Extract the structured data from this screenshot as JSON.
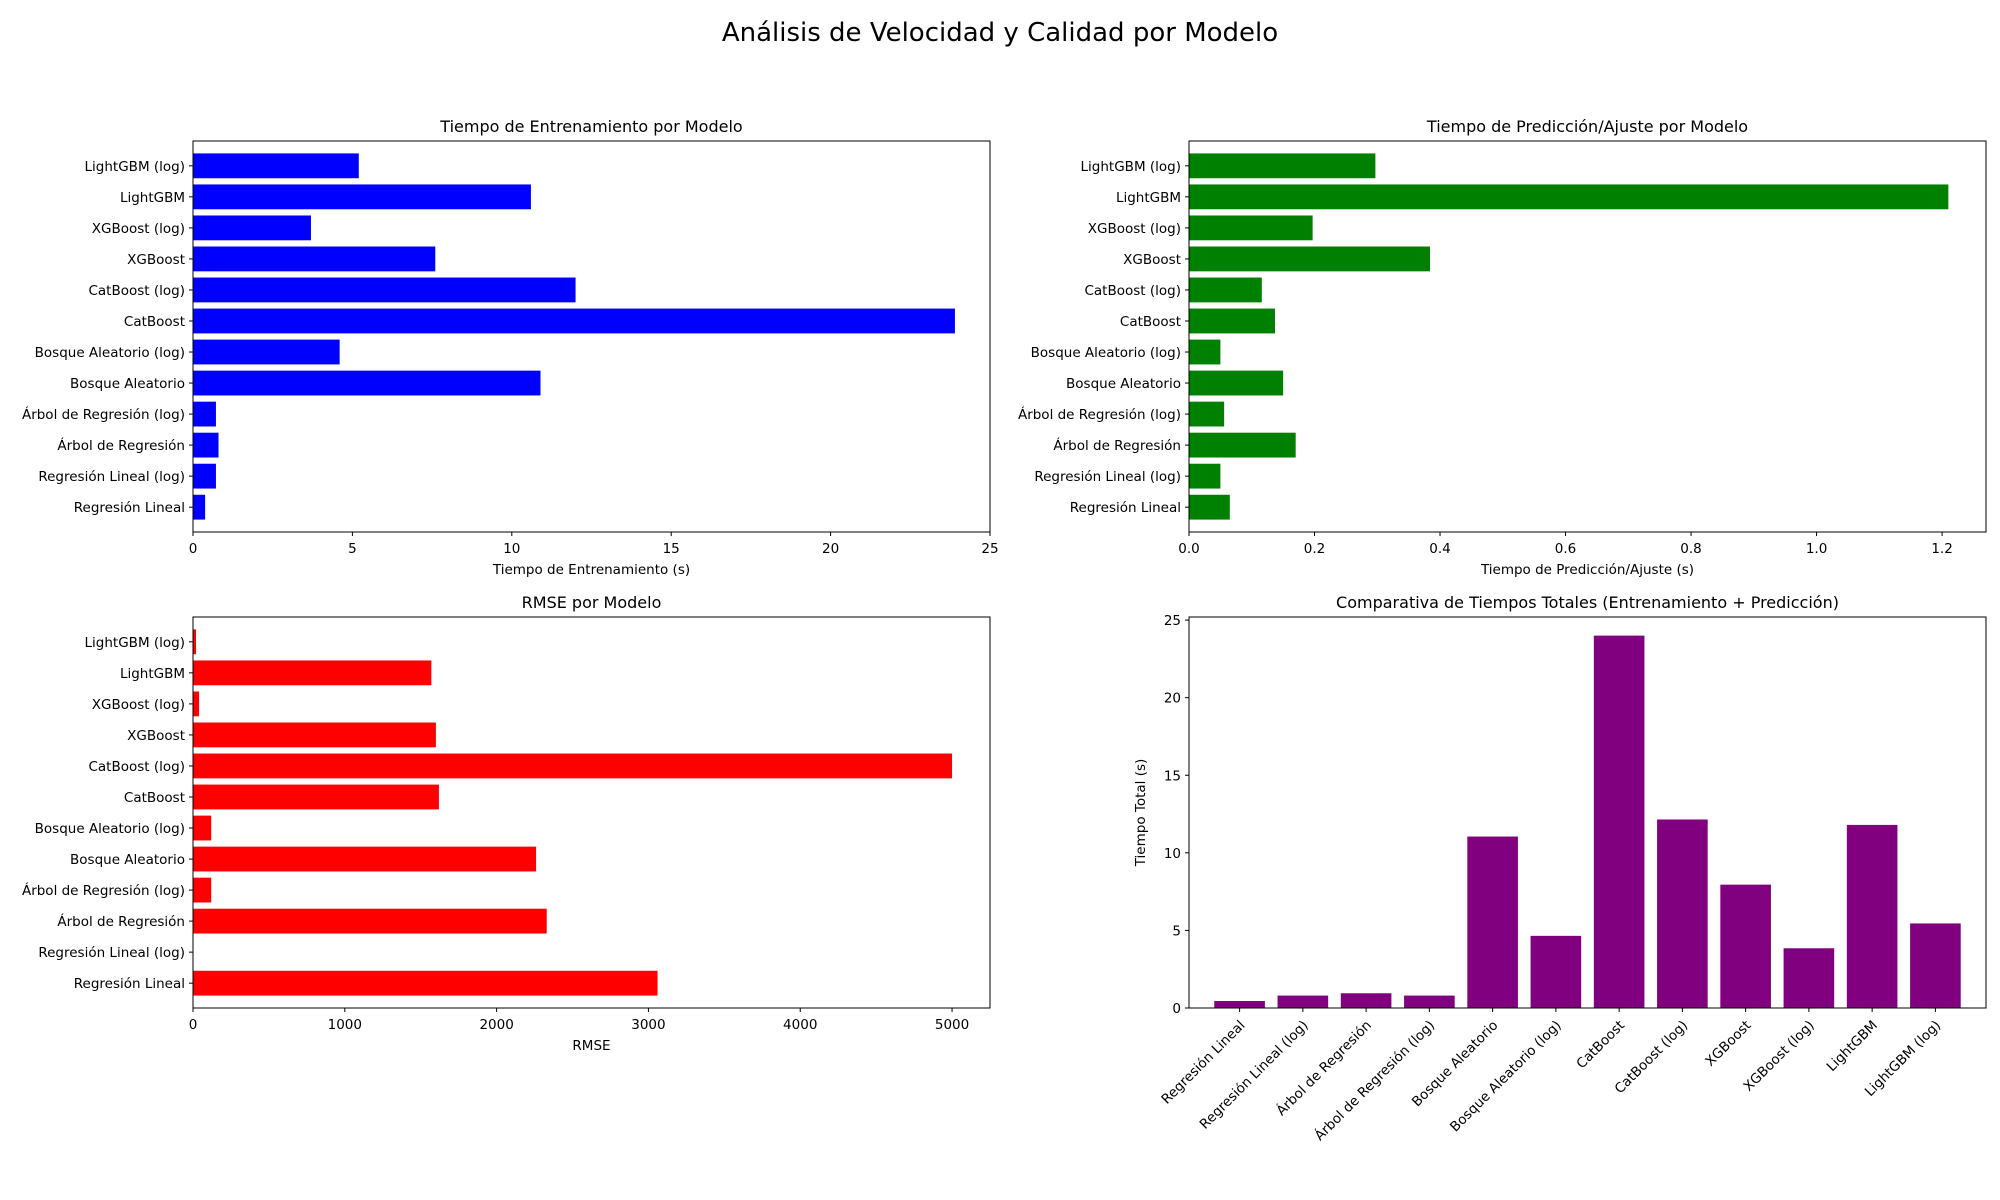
{
  "figure_title": "Análisis de Velocidad y Calidad por Modelo",
  "chart_data": [
    {
      "type": "bar",
      "orientation": "horizontal",
      "title": "Tiempo de Entrenamiento por Modelo",
      "xlabel": "Tiempo de Entrenamiento (s)",
      "ylabel": "",
      "color": "#0000ff",
      "xlim": [
        0,
        25
      ],
      "xticks": [
        0,
        5,
        10,
        15,
        20,
        25
      ],
      "xtick_labels": [
        "0",
        "5",
        "10",
        "15",
        "20",
        "25"
      ],
      "categories": [
        "Regresión Lineal",
        "Regresión Lineal (log)",
        "Árbol de Regresión",
        "Árbol de Regresión (log)",
        "Bosque Aleatorio",
        "Bosque Aleatorio (log)",
        "CatBoost",
        "CatBoost (log)",
        "XGBoost",
        "XGBoost (log)",
        "LightGBM",
        "LightGBM (log)"
      ],
      "values": [
        0.38,
        0.72,
        0.8,
        0.72,
        10.9,
        4.6,
        23.9,
        12.0,
        7.6,
        3.7,
        10.6,
        5.2
      ]
    },
    {
      "type": "bar",
      "orientation": "horizontal",
      "title": "Tiempo de Predicción/Ajuste por Modelo",
      "xlabel": "Tiempo de Predicción/Ajuste (s)",
      "ylabel": "",
      "color": "#008000",
      "xlim": [
        0,
        1.27
      ],
      "xticks": [
        0,
        0.2,
        0.4,
        0.6,
        0.8,
        1.0,
        1.2
      ],
      "xtick_labels": [
        "0.0",
        "0.2",
        "0.4",
        "0.6",
        "0.8",
        "1.0",
        "1.2"
      ],
      "categories": [
        "Regresión Lineal",
        "Regresión Lineal (log)",
        "Árbol de Regresión",
        "Árbol de Regresión (log)",
        "Bosque Aleatorio",
        "Bosque Aleatorio (log)",
        "CatBoost",
        "CatBoost (log)",
        "XGBoost",
        "XGBoost (log)",
        "LightGBM",
        "LightGBM (log)"
      ],
      "values": [
        0.065,
        0.05,
        0.17,
        0.056,
        0.15,
        0.05,
        0.137,
        0.116,
        0.384,
        0.197,
        1.21,
        0.297
      ]
    },
    {
      "type": "bar",
      "orientation": "horizontal",
      "title": "RMSE por Modelo",
      "xlabel": "RMSE",
      "ylabel": "",
      "color": "#ff0000",
      "xlim": [
        0,
        5250
      ],
      "xticks": [
        0,
        1000,
        2000,
        3000,
        4000,
        5000
      ],
      "xtick_labels": [
        "0",
        "1000",
        "2000",
        "3000",
        "4000",
        "5000"
      ],
      "categories": [
        "Regresión Lineal",
        "Regresión Lineal (log)",
        "Árbol de Regresión",
        "Árbol de Regresión (log)",
        "Bosque Aleatorio",
        "Bosque Aleatorio (log)",
        "CatBoost",
        "CatBoost (log)",
        "XGBoost",
        "XGBoost (log)",
        "LightGBM",
        "LightGBM (log)"
      ],
      "values": [
        3060,
        0,
        2330,
        120,
        2260,
        120,
        1620,
        5000,
        1600,
        40,
        1570,
        20
      ]
    },
    {
      "type": "bar",
      "orientation": "vertical",
      "title": "Comparativa de Tiempos Totales (Entrenamiento + Predicción)",
      "xlabel": "",
      "ylabel": "Tiempo Total (s)",
      "color": "#800080",
      "ylim": [
        0,
        25.2
      ],
      "yticks": [
        0,
        5,
        10,
        15,
        20,
        25
      ],
      "ytick_labels": [
        "0",
        "5",
        "10",
        "15",
        "20",
        "25"
      ],
      "categories": [
        "Regresión Lineal",
        "Regresión Lineal (log)",
        "Árbol de Regresión",
        "Árbol de Regresión (log)",
        "Bosque Aleatorio",
        "Bosque Aleatorio (log)",
        "CatBoost",
        "CatBoost (log)",
        "XGBoost",
        "XGBoost (log)",
        "LightGBM",
        "LightGBM (log)"
      ],
      "values": [
        0.45,
        0.8,
        0.95,
        0.8,
        11.05,
        4.65,
        24.0,
        12.15,
        7.95,
        3.85,
        11.8,
        5.45
      ]
    }
  ]
}
